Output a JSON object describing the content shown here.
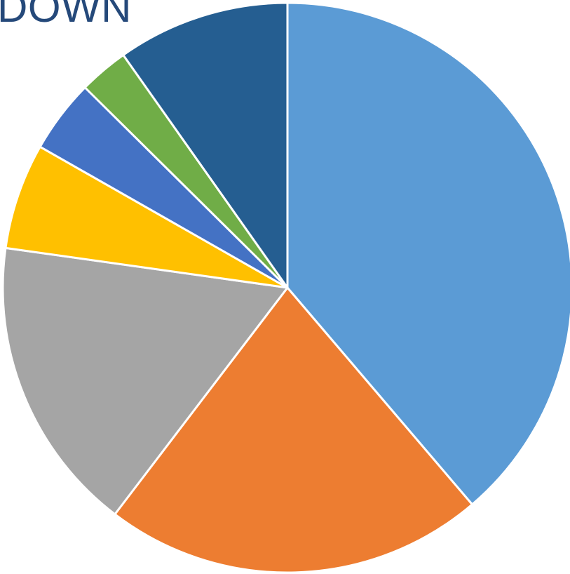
{
  "chart_data": {
    "type": "pie",
    "title": "DOWN",
    "slices": [
      {
        "value": 40.0,
        "color": "#5b9bd5"
      },
      {
        "value": 22.3,
        "color": "#ed7d31"
      },
      {
        "value": 17.4,
        "color": "#a5a5a5"
      },
      {
        "value": 6.2,
        "color": "#ffc000"
      },
      {
        "value": 4.3,
        "color": "#4472c4"
      },
      {
        "value": 2.9,
        "color": "#70ad47"
      },
      {
        "value": 10.1,
        "color": "#255e91"
      }
    ],
    "start_angle_deg": 0,
    "direction": "clockwise",
    "legend": "none"
  }
}
